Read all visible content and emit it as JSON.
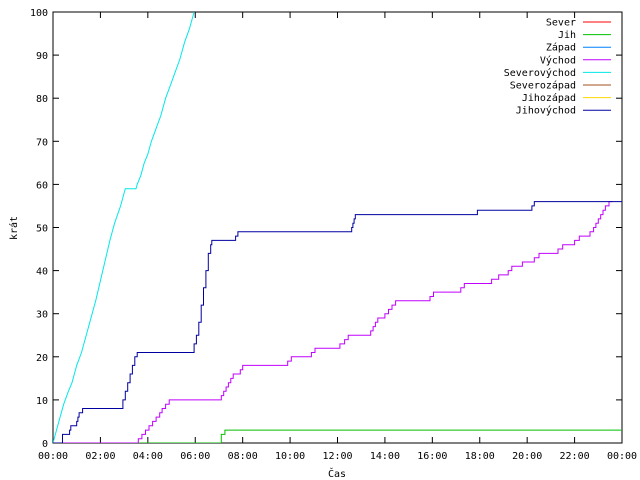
{
  "chart_data": {
    "type": "line",
    "title": "",
    "xlabel": "Čas",
    "ylabel": "krát",
    "xlim": [
      0,
      24
    ],
    "ylim": [
      0,
      100
    ],
    "grid": false,
    "legend_position": "top-right",
    "x_tick_labels": [
      "00:00",
      "02:00",
      "04:00",
      "06:00",
      "08:00",
      "10:00",
      "12:00",
      "14:00",
      "16:00",
      "18:00",
      "20:00",
      "22:00",
      "00:00"
    ],
    "y_tick_labels": [
      "0",
      "10",
      "20",
      "30",
      "40",
      "50",
      "60",
      "70",
      "80",
      "90",
      "100"
    ],
    "series": [
      {
        "name": "Sever",
        "color": "#ff0000",
        "points": []
      },
      {
        "name": "Jih",
        "color": "#00c000",
        "points": [
          [
            0,
            0
          ],
          [
            7.1,
            0
          ],
          [
            7.1,
            2
          ],
          [
            7.25,
            2
          ],
          [
            7.25,
            3
          ],
          [
            24,
            3
          ]
        ]
      },
      {
        "name": "Západ",
        "color": "#0080ff",
        "points": []
      },
      {
        "name": "Východ",
        "color": "#c000ff",
        "points": [
          [
            0,
            0
          ],
          [
            3.6,
            0
          ],
          [
            3.6,
            1
          ],
          [
            3.75,
            1
          ],
          [
            3.75,
            2
          ],
          [
            3.9,
            2
          ],
          [
            3.9,
            3
          ],
          [
            4.05,
            3
          ],
          [
            4.05,
            4
          ],
          [
            4.2,
            4
          ],
          [
            4.2,
            5
          ],
          [
            4.35,
            5
          ],
          [
            4.35,
            6
          ],
          [
            4.5,
            6
          ],
          [
            4.5,
            7
          ],
          [
            4.6,
            7
          ],
          [
            4.6,
            8
          ],
          [
            4.75,
            8
          ],
          [
            4.75,
            9
          ],
          [
            4.9,
            9
          ],
          [
            4.9,
            10
          ],
          [
            7.1,
            10
          ],
          [
            7.1,
            11
          ],
          [
            7.2,
            11
          ],
          [
            7.2,
            12
          ],
          [
            7.3,
            12
          ],
          [
            7.3,
            13
          ],
          [
            7.4,
            13
          ],
          [
            7.4,
            14
          ],
          [
            7.5,
            14
          ],
          [
            7.5,
            15
          ],
          [
            7.6,
            15
          ],
          [
            7.6,
            16
          ],
          [
            7.9,
            16
          ],
          [
            7.9,
            17
          ],
          [
            8.0,
            17
          ],
          [
            8.0,
            18
          ],
          [
            9.9,
            18
          ],
          [
            9.9,
            19
          ],
          [
            10.05,
            19
          ],
          [
            10.05,
            20
          ],
          [
            10.9,
            20
          ],
          [
            10.9,
            21
          ],
          [
            11.05,
            21
          ],
          [
            11.05,
            22
          ],
          [
            12.1,
            22
          ],
          [
            12.1,
            23
          ],
          [
            12.3,
            23
          ],
          [
            12.3,
            24
          ],
          [
            12.45,
            24
          ],
          [
            12.45,
            25
          ],
          [
            13.4,
            25
          ],
          [
            13.4,
            26
          ],
          [
            13.5,
            26
          ],
          [
            13.5,
            27
          ],
          [
            13.6,
            27
          ],
          [
            13.6,
            28
          ],
          [
            13.7,
            28
          ],
          [
            13.7,
            29
          ],
          [
            14.0,
            29
          ],
          [
            14.0,
            30
          ],
          [
            14.15,
            30
          ],
          [
            14.15,
            31
          ],
          [
            14.3,
            31
          ],
          [
            14.3,
            32
          ],
          [
            14.45,
            32
          ],
          [
            14.45,
            33
          ],
          [
            15.9,
            33
          ],
          [
            15.9,
            34
          ],
          [
            16.05,
            34
          ],
          [
            16.05,
            35
          ],
          [
            17.2,
            35
          ],
          [
            17.2,
            36
          ],
          [
            17.35,
            36
          ],
          [
            17.35,
            37
          ],
          [
            18.5,
            37
          ],
          [
            18.5,
            38
          ],
          [
            18.8,
            38
          ],
          [
            18.8,
            39
          ],
          [
            19.2,
            39
          ],
          [
            19.2,
            40
          ],
          [
            19.35,
            40
          ],
          [
            19.35,
            41
          ],
          [
            19.8,
            41
          ],
          [
            19.8,
            42
          ],
          [
            20.3,
            42
          ],
          [
            20.3,
            43
          ],
          [
            20.5,
            43
          ],
          [
            20.5,
            44
          ],
          [
            21.3,
            44
          ],
          [
            21.3,
            45
          ],
          [
            21.5,
            45
          ],
          [
            21.5,
            46
          ],
          [
            22.0,
            46
          ],
          [
            22.0,
            47
          ],
          [
            22.2,
            47
          ],
          [
            22.2,
            48
          ],
          [
            22.65,
            48
          ],
          [
            22.65,
            49
          ],
          [
            22.8,
            49
          ],
          [
            22.8,
            50
          ],
          [
            22.9,
            50
          ],
          [
            22.9,
            51
          ],
          [
            23.0,
            51
          ],
          [
            23.0,
            52
          ],
          [
            23.1,
            52
          ],
          [
            23.1,
            53
          ],
          [
            23.2,
            53
          ],
          [
            23.2,
            54
          ],
          [
            23.3,
            54
          ],
          [
            23.3,
            55
          ],
          [
            23.45,
            55
          ],
          [
            23.45,
            56
          ],
          [
            23.6,
            56
          ]
        ]
      },
      {
        "name": "Severovýchod",
        "color": "#00e8e8",
        "points": [
          [
            0,
            0
          ],
          [
            0.25,
            5
          ],
          [
            0.45,
            9
          ],
          [
            0.65,
            12
          ],
          [
            0.8,
            14
          ],
          [
            1.0,
            18
          ],
          [
            1.2,
            21
          ],
          [
            1.5,
            27
          ],
          [
            1.8,
            33
          ],
          [
            2.1,
            40
          ],
          [
            2.4,
            47
          ],
          [
            2.6,
            51
          ],
          [
            2.85,
            55
          ],
          [
            3.05,
            59
          ],
          [
            3.5,
            59
          ],
          [
            3.55,
            60
          ],
          [
            3.7,
            62
          ],
          [
            3.85,
            65
          ],
          [
            4.0,
            67
          ],
          [
            4.15,
            70
          ],
          [
            4.35,
            73
          ],
          [
            4.55,
            76
          ],
          [
            4.75,
            80
          ],
          [
            4.95,
            83
          ],
          [
            5.15,
            86
          ],
          [
            5.35,
            89
          ],
          [
            5.55,
            93
          ],
          [
            5.75,
            96
          ],
          [
            5.95,
            100
          ]
        ]
      },
      {
        "name": "Severozápad",
        "color": "#a05020",
        "points": []
      },
      {
        "name": "Jihozápad",
        "color": "#ffd700",
        "points": []
      },
      {
        "name": "Jihovýchod",
        "color": "#0000a0",
        "points": [
          [
            0,
            0
          ],
          [
            0.4,
            0
          ],
          [
            0.4,
            2
          ],
          [
            0.7,
            2
          ],
          [
            0.7,
            3
          ],
          [
            0.75,
            3
          ],
          [
            0.75,
            4
          ],
          [
            1.0,
            4
          ],
          [
            1.0,
            5
          ],
          [
            1.05,
            5
          ],
          [
            1.05,
            6
          ],
          [
            1.1,
            6
          ],
          [
            1.1,
            7
          ],
          [
            1.25,
            7
          ],
          [
            1.25,
            8
          ],
          [
            2.95,
            8
          ],
          [
            2.95,
            10
          ],
          [
            3.05,
            10
          ],
          [
            3.05,
            12
          ],
          [
            3.15,
            12
          ],
          [
            3.15,
            14
          ],
          [
            3.25,
            14
          ],
          [
            3.25,
            16
          ],
          [
            3.35,
            16
          ],
          [
            3.35,
            18
          ],
          [
            3.45,
            18
          ],
          [
            3.45,
            20
          ],
          [
            3.55,
            20
          ],
          [
            3.55,
            21
          ],
          [
            5.95,
            21
          ],
          [
            5.95,
            23
          ],
          [
            6.05,
            23
          ],
          [
            6.05,
            25
          ],
          [
            6.15,
            25
          ],
          [
            6.15,
            28
          ],
          [
            6.25,
            28
          ],
          [
            6.25,
            32
          ],
          [
            6.35,
            32
          ],
          [
            6.35,
            36
          ],
          [
            6.45,
            36
          ],
          [
            6.45,
            40
          ],
          [
            6.55,
            40
          ],
          [
            6.55,
            44
          ],
          [
            6.65,
            44
          ],
          [
            6.65,
            46
          ],
          [
            6.7,
            46
          ],
          [
            6.7,
            47
          ],
          [
            7.7,
            47
          ],
          [
            7.7,
            48
          ],
          [
            7.8,
            48
          ],
          [
            7.8,
            49
          ],
          [
            12.6,
            49
          ],
          [
            12.6,
            50
          ],
          [
            12.65,
            50
          ],
          [
            12.65,
            51
          ],
          [
            12.7,
            51
          ],
          [
            12.7,
            52
          ],
          [
            12.75,
            52
          ],
          [
            12.75,
            53
          ],
          [
            17.9,
            53
          ],
          [
            17.9,
            54
          ],
          [
            20.2,
            54
          ],
          [
            20.2,
            55
          ],
          [
            20.3,
            55
          ],
          [
            20.3,
            56
          ],
          [
            24,
            56
          ]
        ]
      }
    ]
  }
}
